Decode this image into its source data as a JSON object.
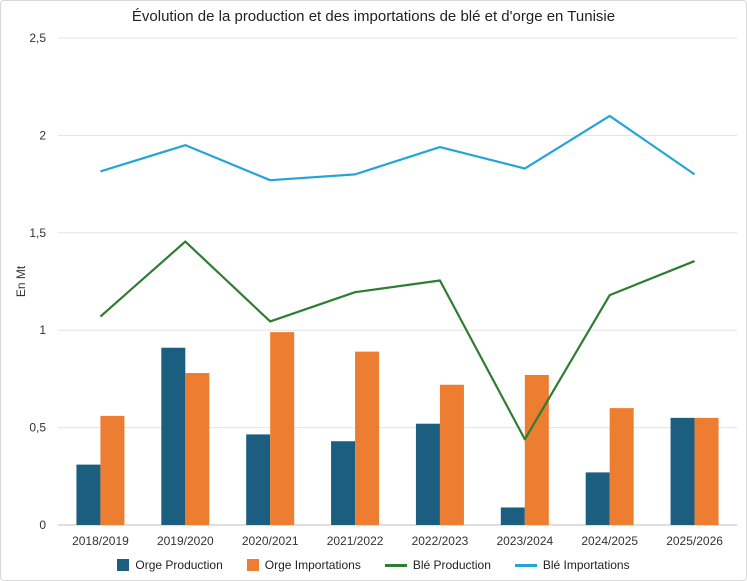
{
  "chart_data": {
    "type": "bar",
    "title": "Évolution de la production et des importations de blé et d'orge en Tunisie",
    "xlabel": "",
    "ylabel": "En Mt",
    "ylim": [
      0,
      2.5
    ],
    "yticks": [
      "0",
      "0,5",
      "1",
      "1,5",
      "2",
      "2,5"
    ],
    "ytick_values": [
      0,
      0.5,
      1,
      1.5,
      2,
      2.5
    ],
    "grid": true,
    "legend_position": "bottom",
    "categories": [
      "2018/2019",
      "2019/2020",
      "2020/2021",
      "2021/2022",
      "2022/2023",
      "2023/2024",
      "2024/2025",
      "2025/2026"
    ],
    "series": [
      {
        "name": "Orge Production",
        "kind": "bar",
        "color": "#1b5e80",
        "values": [
          0.31,
          0.91,
          0.465,
          0.43,
          0.52,
          0.09,
          0.27,
          0.55
        ]
      },
      {
        "name": "Orge Importations",
        "kind": "bar",
        "color": "#ed7d31",
        "values": [
          0.56,
          0.78,
          0.99,
          0.89,
          0.72,
          0.77,
          0.6,
          0.55
        ]
      },
      {
        "name": "Blé Production",
        "kind": "line",
        "color": "#2e7d32",
        "values": [
          1.07,
          1.455,
          1.045,
          1.195,
          1.255,
          0.44,
          1.18,
          1.355
        ]
      },
      {
        "name": "Blé Importations",
        "kind": "line",
        "color": "#24a5d6",
        "values": [
          1.815,
          1.95,
          1.77,
          1.8,
          1.94,
          1.83,
          2.1,
          1.8
        ]
      }
    ]
  }
}
